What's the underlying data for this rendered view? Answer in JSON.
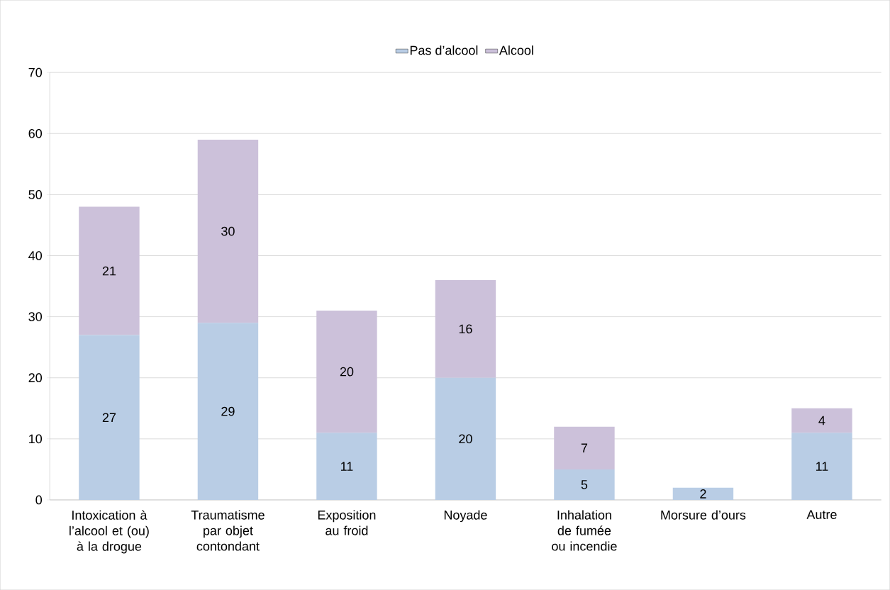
{
  "chart_data": {
    "type": "bar",
    "stacked": true,
    "categories": [
      "Intoxication à l’alcool et (ou) à la drogue",
      "Traumatisme par objet contondant",
      "Exposition au froid",
      "Noyade",
      "Inhalation de fumée ou incendie",
      "Morsure d’ours",
      "Autre"
    ],
    "series": [
      {
        "name": "Pas d’alcool",
        "color": "#b9cde5",
        "values": [
          27,
          29,
          11,
          20,
          5,
          2,
          11
        ],
        "value_labels": [
          "27",
          "29",
          "11",
          "20",
          "5",
          "2",
          "11"
        ]
      },
      {
        "name": "Alcool",
        "color": "#ccc1da",
        "values": [
          21,
          30,
          20,
          16,
          7,
          0,
          4
        ],
        "value_labels": [
          "21",
          "30",
          "20",
          "16",
          "7",
          null,
          "4"
        ]
      }
    ],
    "ylim": [
      0,
      70
    ],
    "yticks": [
      0,
      10,
      20,
      30,
      40,
      50,
      60,
      70
    ],
    "grid": "y",
    "legend": "top"
  }
}
